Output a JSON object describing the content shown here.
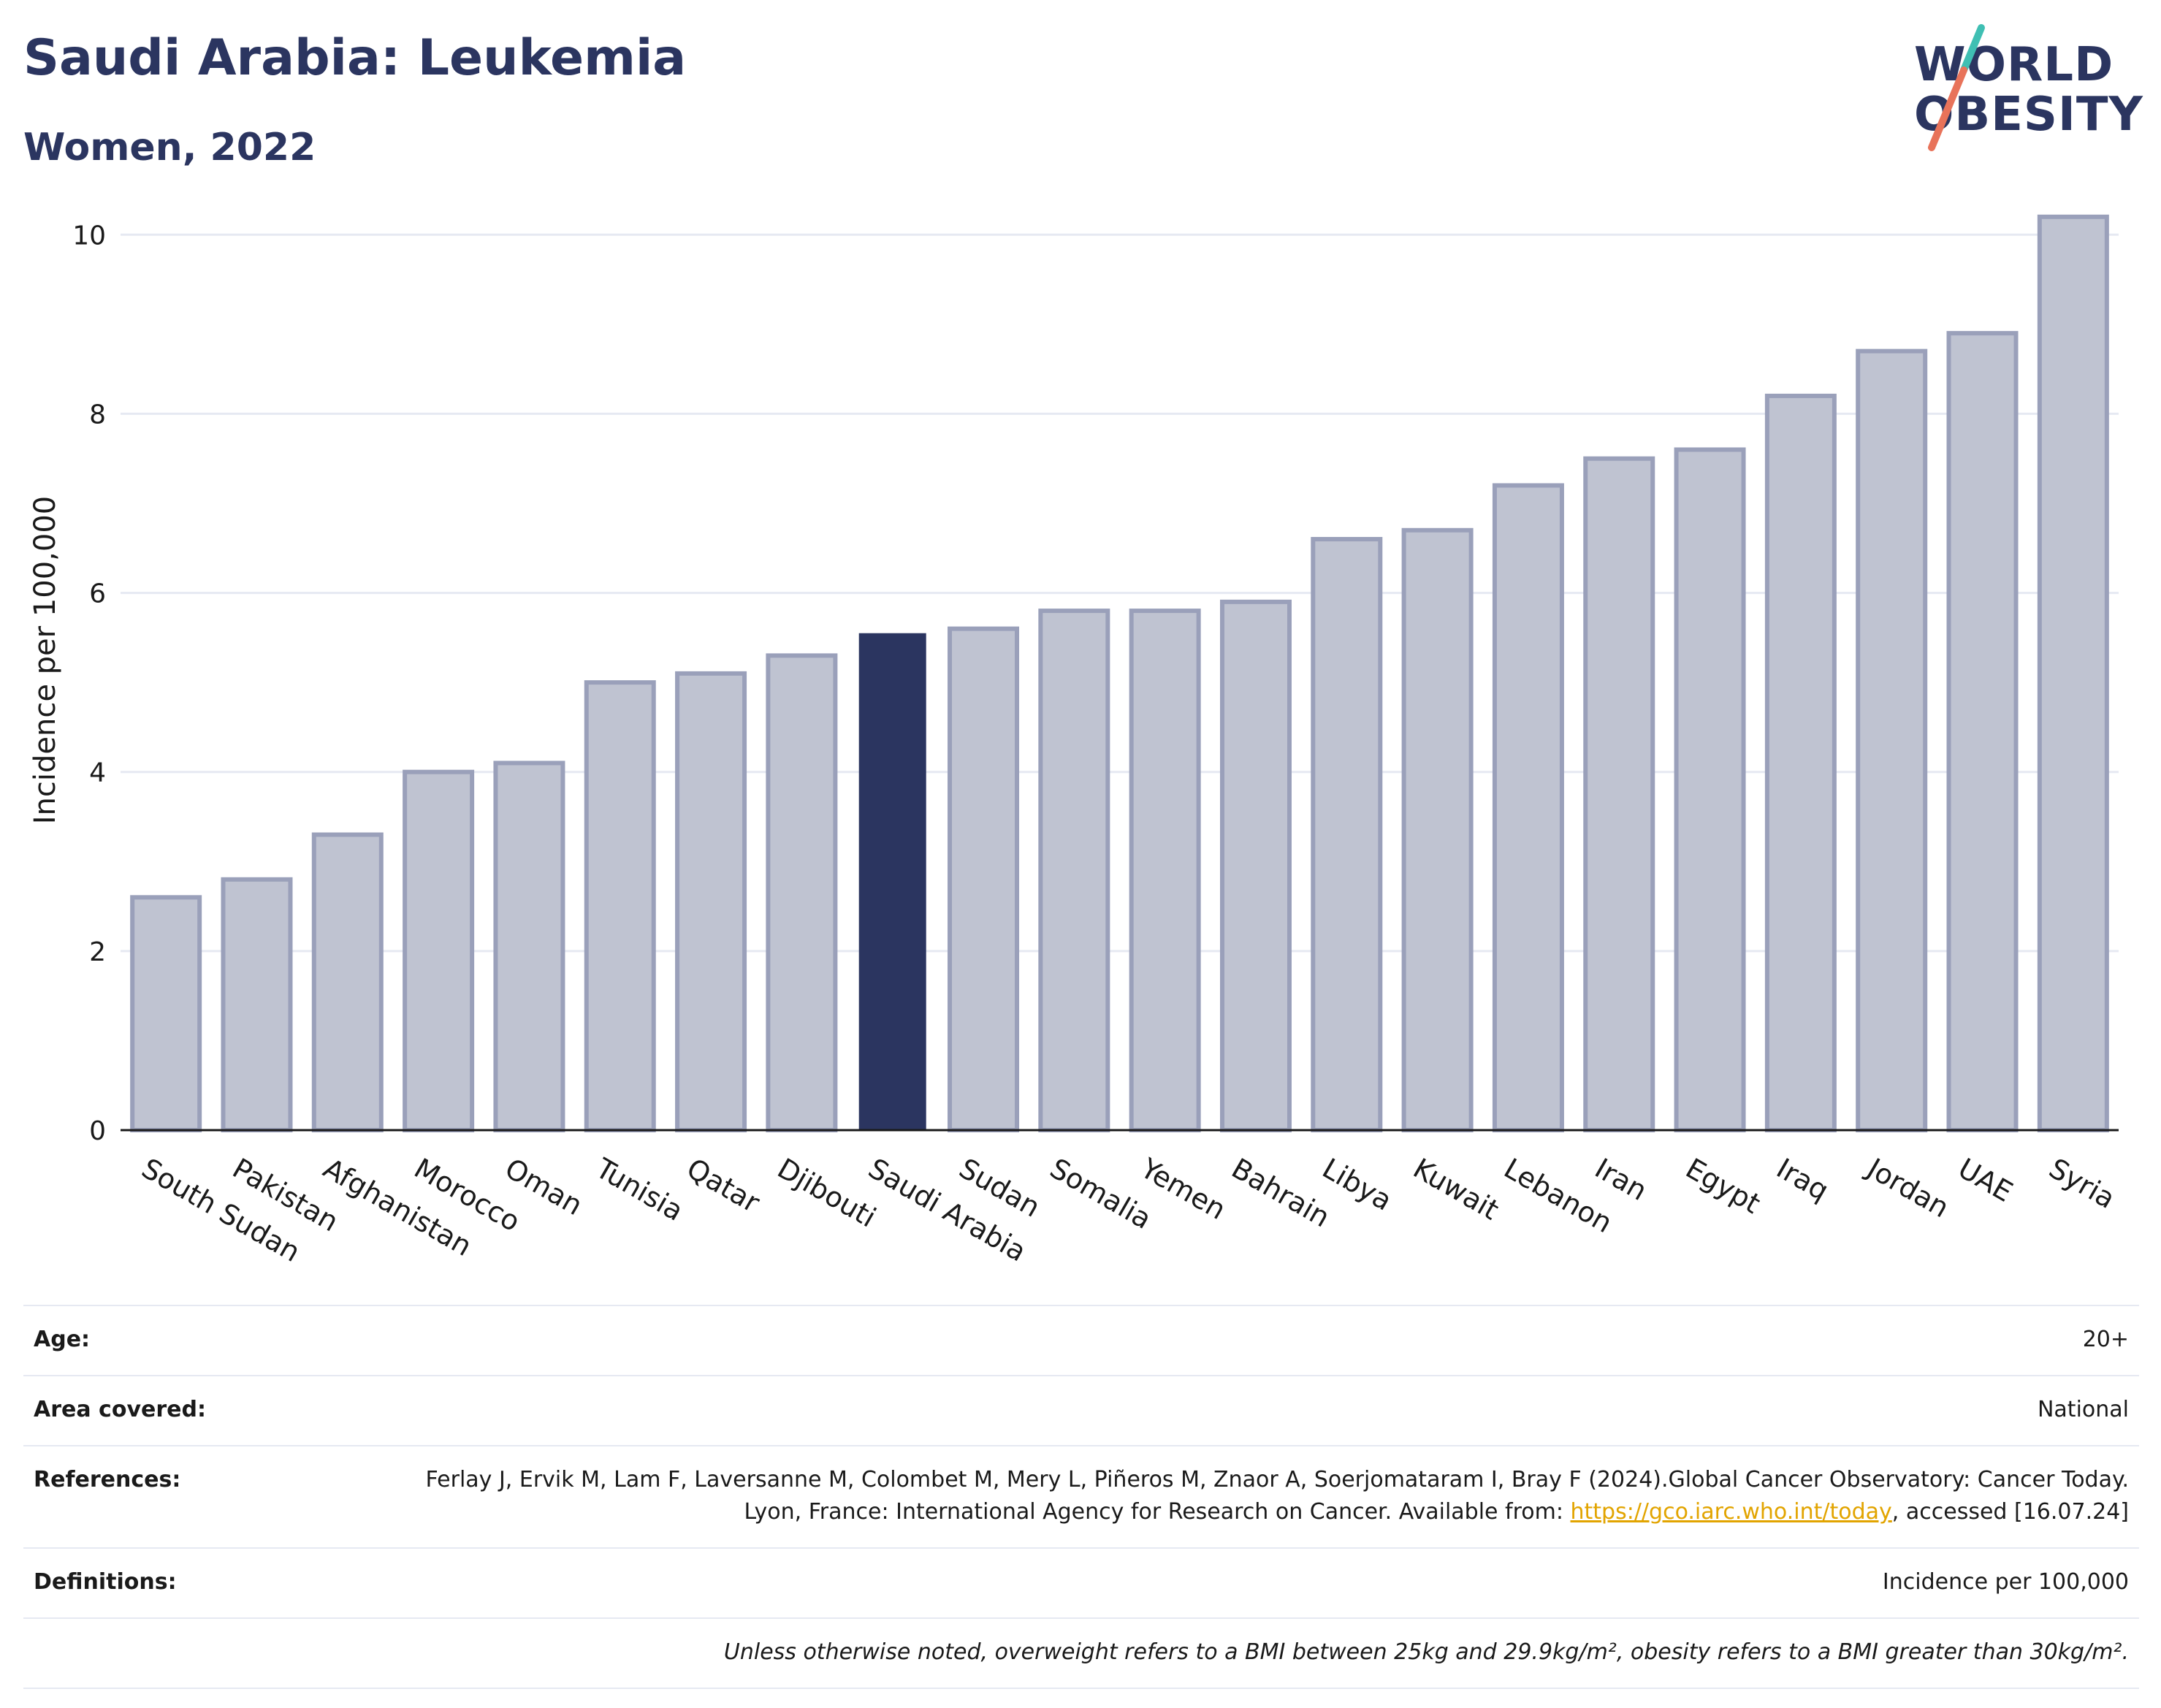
{
  "header": {
    "title": "Saudi Arabia: Leukemia",
    "subtitle": "Women, 2022"
  },
  "logo": {
    "line1": "WORLD",
    "line2": "OBESITY",
    "colors": {
      "text": "#2b3560",
      "slash_top": "#3fbfb3",
      "slash_bottom": "#e8735a"
    }
  },
  "colors": {
    "bar": "#bfc3d1",
    "bar_stroke": "#9aa0ba",
    "highlight": "#2b3560",
    "grid": "#e6e9f2",
    "axis": "#1a1a1a"
  },
  "chart_data": {
    "type": "bar",
    "title": "Saudi Arabia: Leukemia",
    "subtitle": "Women, 2022",
    "xlabel": "",
    "ylabel": "Incidence per 100,000",
    "ylim": [
      0,
      10.5
    ],
    "yticks": [
      0,
      2,
      4,
      6,
      8,
      10
    ],
    "grid": true,
    "highlight": "Saudi Arabia",
    "categories": [
      "South Sudan",
      "Pakistan",
      "Afghanistan",
      "Morocco",
      "Oman",
      "Tunisia",
      "Qatar",
      "Djibouti",
      "Saudi Arabia",
      "Sudan",
      "Somalia",
      "Yemen",
      "Bahrain",
      "Libya",
      "Kuwait",
      "Lebanon",
      "Iran",
      "Egypt",
      "Iraq",
      "Jordan",
      "UAE",
      "Syria"
    ],
    "values": [
      2.6,
      2.8,
      3.3,
      4.0,
      4.1,
      5.0,
      5.1,
      5.3,
      5.55,
      5.6,
      5.8,
      5.8,
      5.9,
      6.6,
      6.7,
      7.2,
      7.5,
      7.6,
      8.2,
      8.7,
      8.9,
      10.2
    ]
  },
  "meta": {
    "age_label": "Age:",
    "age_value": "20+",
    "area_label": "Area covered:",
    "area_value": "National",
    "references_label": "References:",
    "references_text": "Ferlay J, Ervik M, Lam F, Laversanne M, Colombet M, Mery L, Piñeros M, Znaor A, Soerjomataram I, Bray F (2024).Global Cancer Observatory: Cancer Today. Lyon, France: International Agency for Research on Cancer. Available from: ",
    "references_link": "https://gco.iarc.who.int/today",
    "references_tail": ", accessed [16.07.24]",
    "definitions_label": "Definitions:",
    "definitions_value": "Incidence per 100,000",
    "note": "Unless otherwise noted, overweight refers to a BMI between 25kg and 29.9kg/m², obesity refers to a BMI greater than 30kg/m²."
  }
}
